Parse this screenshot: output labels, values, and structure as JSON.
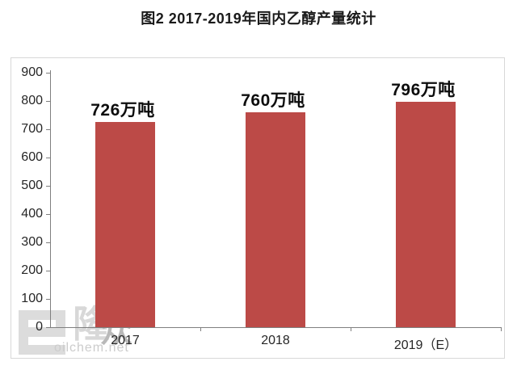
{
  "figure": {
    "title": "图2 2017-2019年国内乙醇产量统计"
  },
  "chart_data": {
    "type": "bar",
    "title": "图2 2017-2019年国内乙醇产量统计",
    "categories": [
      "2017",
      "2018",
      "2019（E）"
    ],
    "values": [
      726,
      760,
      796
    ],
    "data_labels": [
      "726万吨",
      "760万吨",
      "796万吨"
    ],
    "unit": "万吨",
    "ylabel": "",
    "xlabel": "",
    "ylim": [
      0,
      900
    ],
    "ytick_step": 100,
    "yticks": [
      0,
      100,
      200,
      300,
      400,
      500,
      600,
      700,
      800,
      900
    ],
    "grid": false,
    "legend": false,
    "bar_color": "#BC4A47",
    "axis_color": "#7F7F7F",
    "frame_color": "#D8D8D8",
    "label_color": "#0D0D0D"
  },
  "watermark": {
    "logo_icon": "longzhong-e-logo",
    "logo_text_long": "隆",
    "logo_text_zhong": "众",
    "url_text": "oilchem.net"
  }
}
